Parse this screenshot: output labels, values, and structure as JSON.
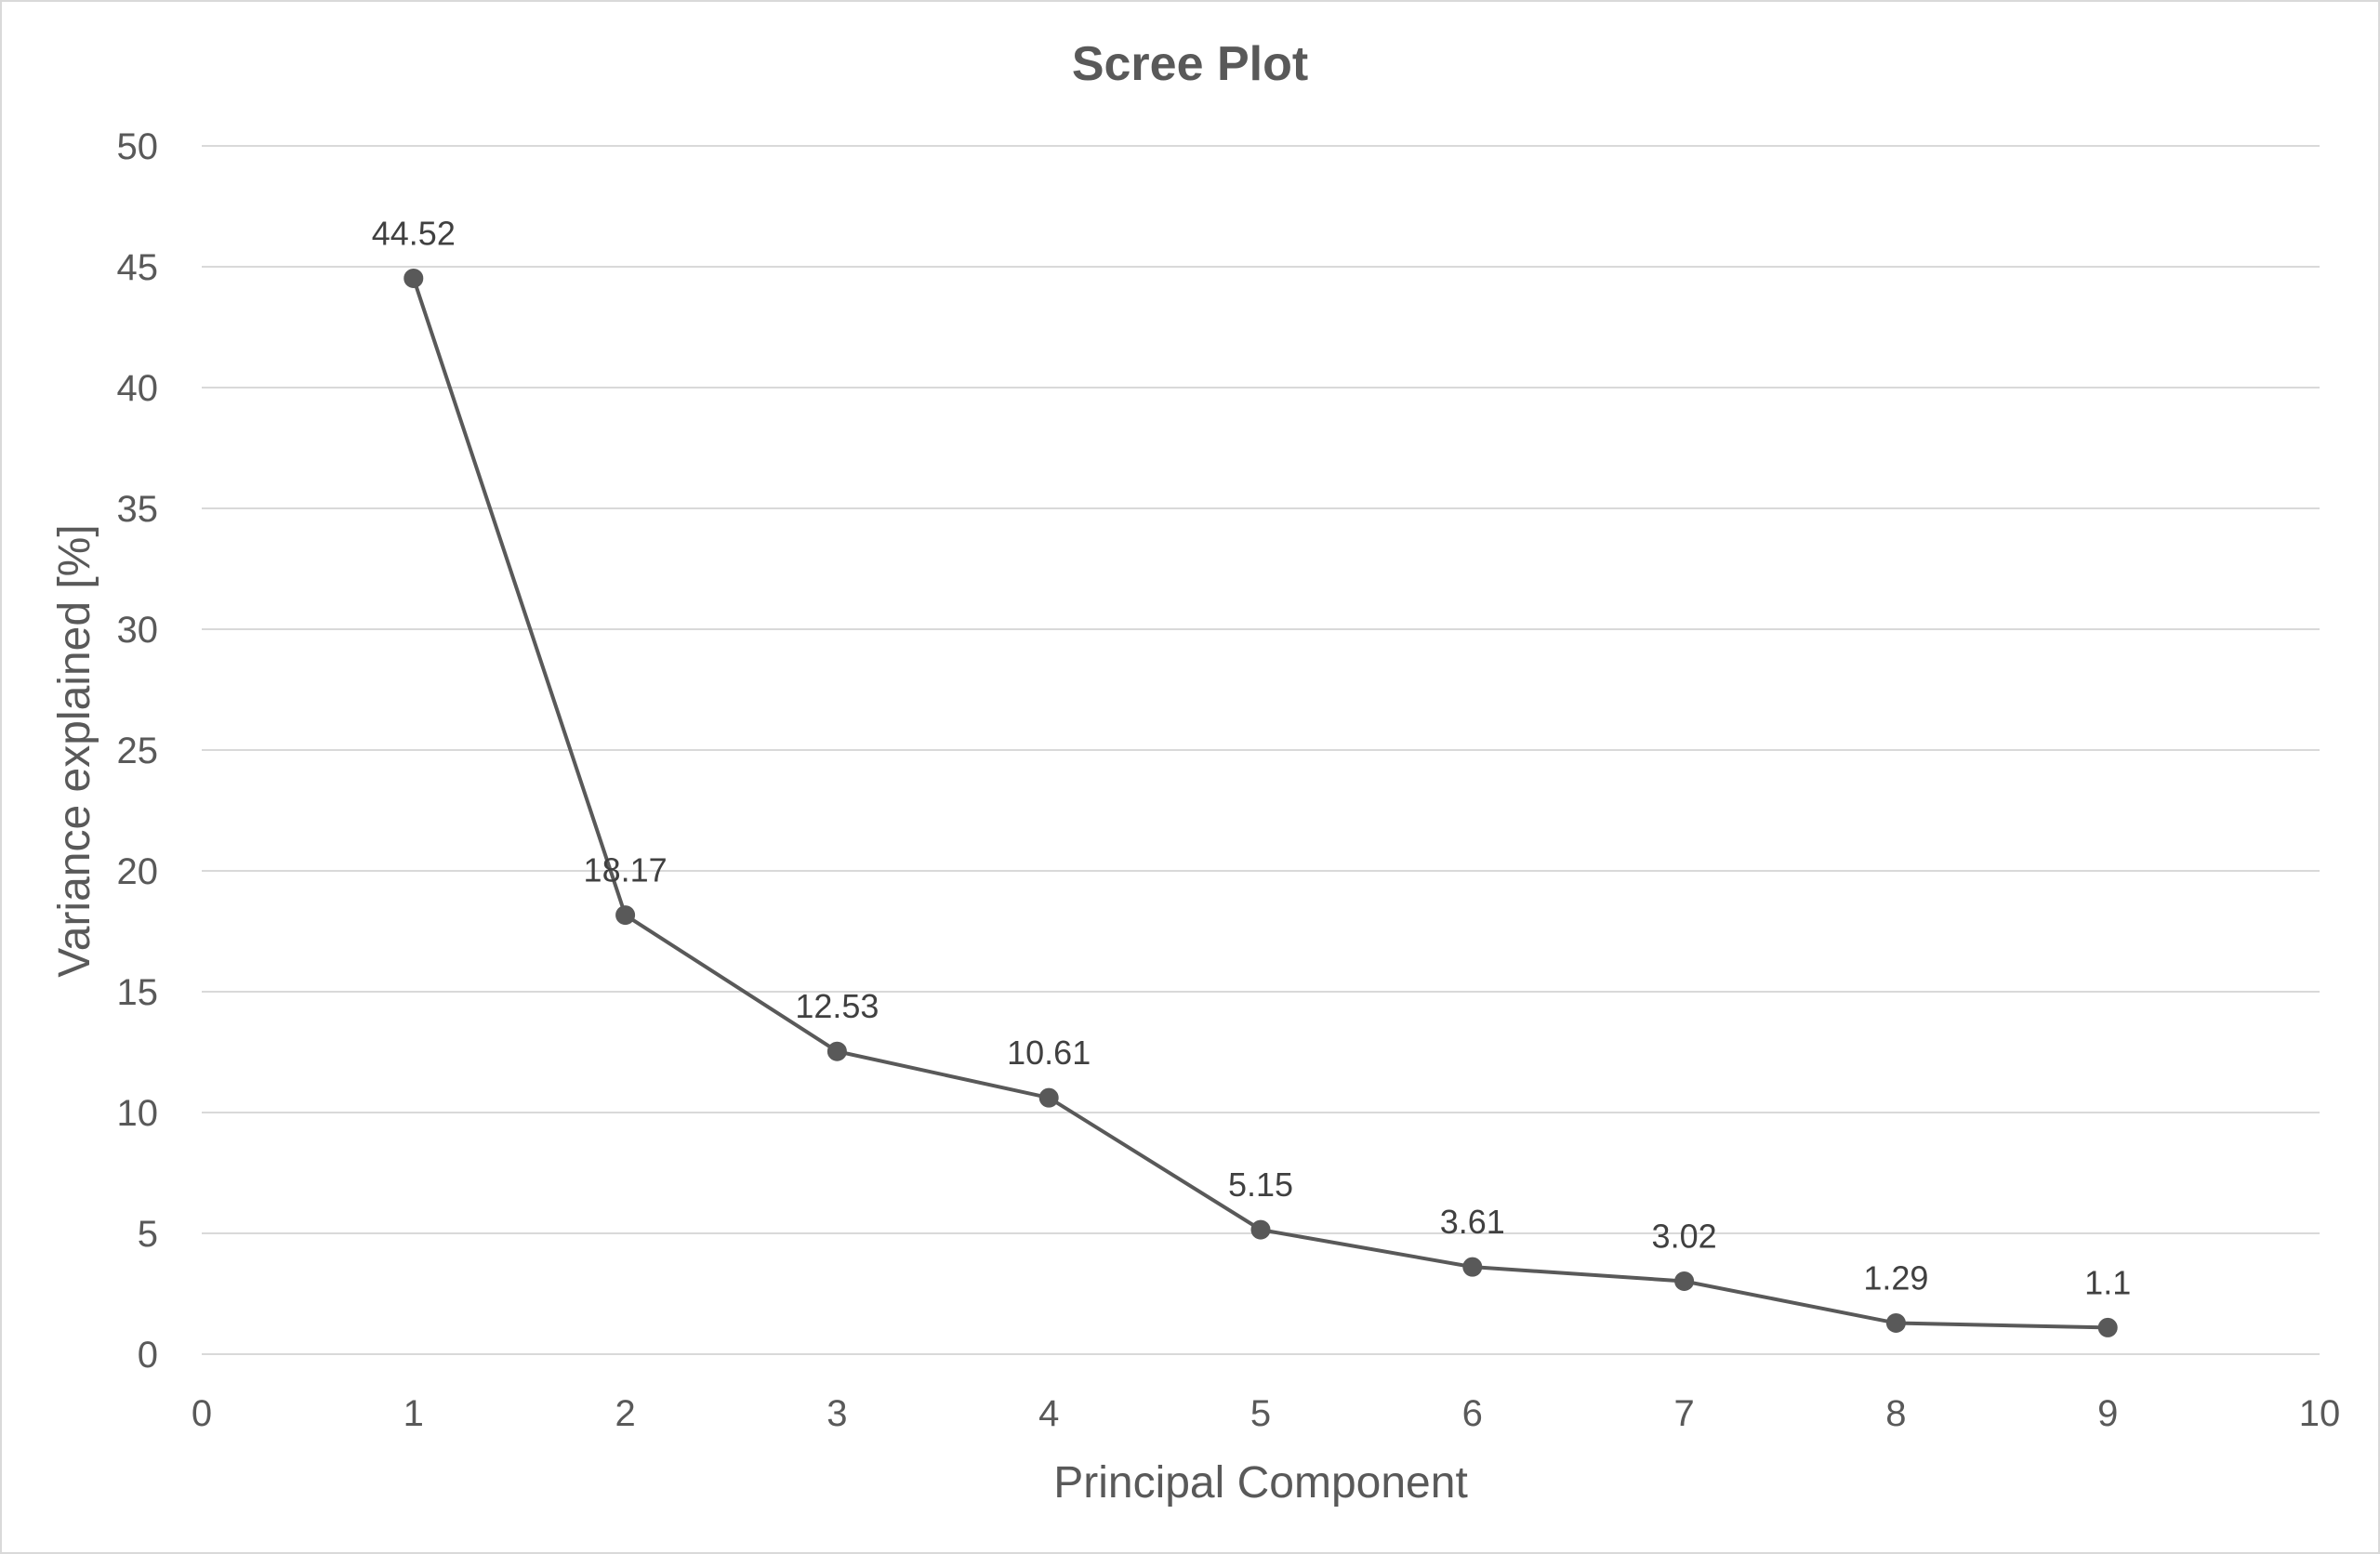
{
  "chart_data": {
    "type": "scatter",
    "title": "Scree Plot",
    "xlabel": "Principal Component",
    "ylabel": "Variance explained [%]",
    "xlim": [
      0,
      10
    ],
    "ylim": [
      0,
      50
    ],
    "x_ticks": [
      "0",
      "1",
      "2",
      "3",
      "4",
      "5",
      "6",
      "7",
      "8",
      "9",
      "10"
    ],
    "y_ticks": [
      "0",
      "5",
      "10",
      "15",
      "20",
      "25",
      "30",
      "35",
      "40",
      "45",
      "50"
    ],
    "grid": "horizontal",
    "markers": true,
    "lines": true,
    "series": [
      {
        "x": [
          1,
          2,
          3,
          4,
          5,
          6,
          7,
          8,
          9
        ],
        "values": [
          44.52,
          18.17,
          12.53,
          10.61,
          5.15,
          3.61,
          3.02,
          1.29,
          1.1
        ],
        "labels": [
          "44.52",
          "18.17",
          "12.53",
          "10.61",
          "5.15",
          "3.61",
          "3.02",
          "1.29",
          "1.1"
        ]
      }
    ]
  }
}
